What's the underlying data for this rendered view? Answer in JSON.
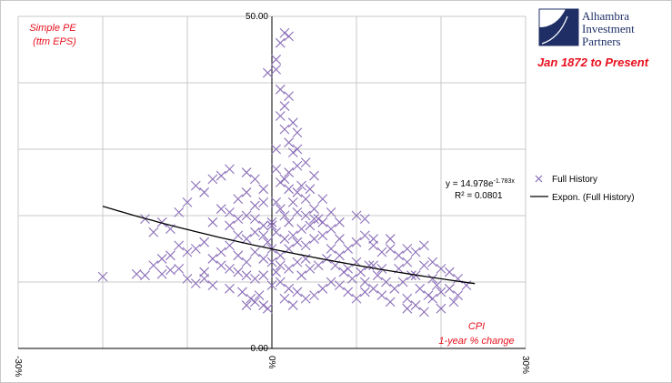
{
  "branding": {
    "logo_lines": [
      "Alhambra",
      "Investment",
      "Partners"
    ],
    "period": "Jan 1872 to Present",
    "colors": {
      "logo": "#1f2f66",
      "accent": "#e8101e"
    }
  },
  "chart_data": {
    "type": "scatter",
    "ylabel_lines": [
      "Simple PE",
      "(ttm EPS)"
    ],
    "xlabel_lines": [
      "CPI",
      "1-year % change"
    ],
    "xlim": [
      -0.3,
      0.3
    ],
    "ylim": [
      0,
      50
    ],
    "x_ticks": [
      {
        "value": -0.3,
        "label": "-30%"
      },
      {
        "value": 0,
        "label": "0%"
      },
      {
        "value": 0.3,
        "label": "30%"
      }
    ],
    "y_ticks": [
      {
        "value": 0,
        "label": "0.00"
      },
      {
        "value": 50,
        "label": "50.00"
      }
    ],
    "gridlines": true,
    "legend_position": "right",
    "series": [
      {
        "name": "Full History",
        "marker": "x",
        "color": "#8b6fb8",
        "points": [
          [
            -0.2,
            10.8
          ],
          [
            -0.16,
            11.2
          ],
          [
            -0.15,
            11.0
          ],
          [
            -0.14,
            12.5
          ],
          [
            -0.13,
            11.2
          ],
          [
            -0.12,
            11.8
          ],
          [
            -0.11,
            12.0
          ],
          [
            -0.1,
            10.5
          ],
          [
            -0.09,
            9.8
          ],
          [
            -0.08,
            10.5
          ],
          [
            -0.14,
            17.5
          ],
          [
            -0.13,
            19.0
          ],
          [
            -0.15,
            19.5
          ],
          [
            -0.12,
            18.0
          ],
          [
            -0.11,
            20.5
          ],
          [
            -0.1,
            22.0
          ],
          [
            -0.09,
            24.5
          ],
          [
            -0.08,
            23.5
          ],
          [
            -0.07,
            25.5
          ],
          [
            -0.06,
            26.0
          ],
          [
            -0.05,
            27.0
          ],
          [
            -0.03,
            26.5
          ],
          [
            -0.02,
            25.5
          ],
          [
            -0.04,
            22.5
          ],
          [
            -0.06,
            21.0
          ],
          [
            -0.07,
            19.0
          ],
          [
            -0.05,
            18.5
          ],
          [
            -0.04,
            17.0
          ],
          [
            -0.03,
            16.5
          ],
          [
            -0.02,
            17.5
          ],
          [
            -0.01,
            17.0
          ],
          [
            -0.08,
            16.0
          ],
          [
            -0.09,
            15.0
          ],
          [
            -0.1,
            14.5
          ],
          [
            -0.11,
            15.5
          ],
          [
            -0.12,
            14.0
          ],
          [
            -0.13,
            13.5
          ],
          [
            -0.07,
            13.5
          ],
          [
            -0.06,
            12.5
          ],
          [
            -0.05,
            12.0
          ],
          [
            -0.04,
            11.5
          ],
          [
            -0.03,
            11.0
          ],
          [
            -0.02,
            10.5
          ],
          [
            -0.01,
            11.0
          ],
          [
            -0.06,
            14.5
          ],
          [
            -0.05,
            15.5
          ],
          [
            -0.04,
            14.0
          ],
          [
            -0.03,
            13.0
          ],
          [
            -0.02,
            14.5
          ],
          [
            -0.01,
            13.5
          ],
          [
            -0.03,
            6.5
          ],
          [
            -0.02,
            7.0
          ],
          [
            -0.01,
            6.5
          ],
          [
            -0.025,
            7.5
          ],
          [
            -0.015,
            8.0
          ],
          [
            -0.005,
            6.0
          ],
          [
            -0.035,
            8.5
          ],
          [
            -0.05,
            9.0
          ],
          [
            -0.07,
            9.5
          ],
          [
            -0.08,
            11.5
          ],
          [
            -0.04,
            19.5
          ],
          [
            -0.03,
            20.0
          ],
          [
            -0.02,
            21.5
          ],
          [
            -0.01,
            22.0
          ],
          [
            -0.02,
            19.5
          ],
          [
            -0.01,
            18.5
          ],
          [
            -0.0,
            19.0
          ],
          [
            -0.03,
            23.5
          ],
          [
            -0.01,
            24.0
          ],
          [
            -0.05,
            20.5
          ],
          [
            0.005,
            43.5
          ],
          [
            0.01,
            46.0
          ],
          [
            0.015,
            47.5
          ],
          [
            0.02,
            47.0
          ],
          [
            0.005,
            42.0
          ],
          [
            -0.005,
            41.5
          ],
          [
            0.01,
            39.0
          ],
          [
            0.02,
            38.0
          ],
          [
            0.015,
            36.5
          ],
          [
            0.025,
            34.0
          ],
          [
            0.03,
            32.5
          ],
          [
            0.02,
            31.0
          ],
          [
            0.025,
            29.5
          ],
          [
            0.03,
            27.5
          ],
          [
            0.02,
            26.5
          ],
          [
            0.015,
            25.5
          ],
          [
            0.035,
            24.5
          ],
          [
            0.03,
            23.5
          ],
          [
            0.04,
            22.5
          ],
          [
            0.045,
            24.0
          ],
          [
            0.05,
            26.0
          ],
          [
            0.04,
            28.0
          ],
          [
            0.03,
            30.0
          ],
          [
            0.015,
            33.0
          ],
          [
            0.01,
            35.0
          ],
          [
            0.005,
            30.0
          ],
          [
            0.005,
            27.0
          ],
          [
            0.01,
            25.0
          ],
          [
            0.02,
            24.0
          ],
          [
            0.025,
            22.0
          ],
          [
            0.005,
            22.0
          ],
          [
            0.01,
            21.0
          ],
          [
            0.015,
            20.0
          ],
          [
            0.02,
            19.0
          ],
          [
            0.03,
            20.5
          ],
          [
            0.04,
            20.0
          ],
          [
            0.05,
            21.0
          ],
          [
            0.06,
            22.5
          ],
          [
            0.055,
            19.5
          ],
          [
            0.045,
            18.5
          ],
          [
            0.035,
            18.0
          ],
          [
            0.025,
            17.0
          ],
          [
            0.015,
            16.5
          ],
          [
            0.005,
            17.5
          ],
          [
            0.0,
            18.5
          ],
          [
            -0.005,
            16.0
          ],
          [
            0.0,
            15.0
          ],
          [
            0.01,
            14.0
          ],
          [
            0.02,
            15.0
          ],
          [
            0.03,
            16.0
          ],
          [
            0.04,
            15.5
          ],
          [
            0.05,
            16.5
          ],
          [
            0.06,
            17.0
          ],
          [
            0.07,
            18.0
          ],
          [
            0.08,
            16.5
          ],
          [
            0.09,
            15.0
          ],
          [
            0.1,
            16.0
          ],
          [
            0.11,
            17.0
          ],
          [
            0.12,
            15.5
          ],
          [
            0.13,
            14.5
          ],
          [
            0.14,
            15.0
          ],
          [
            0.15,
            14.0
          ],
          [
            0.16,
            13.0
          ],
          [
            0.17,
            14.5
          ],
          [
            0.18,
            12.5
          ],
          [
            0.19,
            13.0
          ],
          [
            0.2,
            12.0
          ],
          [
            0.21,
            11.5
          ],
          [
            0.22,
            10.5
          ],
          [
            0.23,
            9.5
          ],
          [
            0.2,
            8.5
          ],
          [
            0.19,
            7.5
          ],
          [
            0.17,
            6.5
          ],
          [
            0.16,
            6.0
          ],
          [
            0.14,
            7.0
          ],
          [
            0.13,
            8.0
          ],
          [
            0.12,
            9.0
          ],
          [
            0.11,
            8.5
          ],
          [
            0.1,
            7.5
          ],
          [
            0.09,
            8.5
          ],
          [
            0.08,
            9.5
          ],
          [
            0.07,
            10.0
          ],
          [
            0.06,
            9.0
          ],
          [
            0.05,
            8.0
          ],
          [
            0.04,
            7.5
          ],
          [
            0.03,
            8.5
          ],
          [
            0.02,
            9.0
          ],
          [
            0.01,
            10.0
          ],
          [
            0.0,
            9.5
          ],
          [
            0.015,
            7.5
          ],
          [
            0.025,
            6.5
          ],
          [
            0.035,
            11.0
          ],
          [
            0.045,
            12.0
          ],
          [
            0.055,
            12.5
          ],
          [
            0.065,
            13.5
          ],
          [
            0.075,
            12.5
          ],
          [
            0.085,
            11.5
          ],
          [
            0.095,
            10.5
          ],
          [
            0.105,
            11.5
          ],
          [
            0.115,
            12.5
          ],
          [
            0.125,
            11.0
          ],
          [
            0.135,
            10.0
          ],
          [
            0.145,
            9.0
          ],
          [
            0.155,
            10.0
          ],
          [
            0.165,
            11.0
          ],
          [
            0.175,
            9.0
          ],
          [
            0.185,
            8.0
          ],
          [
            0.195,
            9.5
          ],
          [
            0.21,
            9.0
          ],
          [
            0.215,
            7.0
          ],
          [
            0.18,
            5.5
          ],
          [
            0.2,
            6.0
          ],
          [
            0.16,
            7.5
          ],
          [
            0.12,
            12.5
          ],
          [
            0.1,
            13.0
          ],
          [
            0.08,
            14.0
          ],
          [
            0.07,
            15.0
          ],
          [
            0.09,
            12.0
          ],
          [
            0.11,
            10.0
          ],
          [
            0.13,
            12.0
          ],
          [
            0.07,
            20.5
          ],
          [
            0.08,
            19.0
          ],
          [
            0.06,
            19.0
          ],
          [
            0.05,
            19.5
          ],
          [
            0.04,
            13.5
          ],
          [
            0.03,
            13.0
          ],
          [
            0.02,
            12.0
          ],
          [
            0.01,
            12.5
          ],
          [
            0.0,
            13.0
          ],
          [
            0.005,
            11.5
          ],
          [
            0.1,
            20.0
          ],
          [
            0.11,
            19.5
          ],
          [
            0.12,
            16.5
          ],
          [
            0.14,
            16.5
          ],
          [
            0.16,
            15.0
          ],
          [
            0.18,
            15.5
          ],
          [
            0.15,
            12.0
          ],
          [
            0.17,
            11.0
          ],
          [
            0.19,
            10.5
          ],
          [
            0.22,
            8.0
          ]
        ],
        "trendline": {
          "name": "Expon. (Full History)",
          "equation_base": "y = 14.978e",
          "equation_exponent": "-1.783x",
          "r_squared": "R² = 0.0801",
          "a": 14.978,
          "b": -1.783,
          "x_range": [
            -0.2,
            0.24
          ],
          "color": "#000000"
        }
      }
    ]
  }
}
